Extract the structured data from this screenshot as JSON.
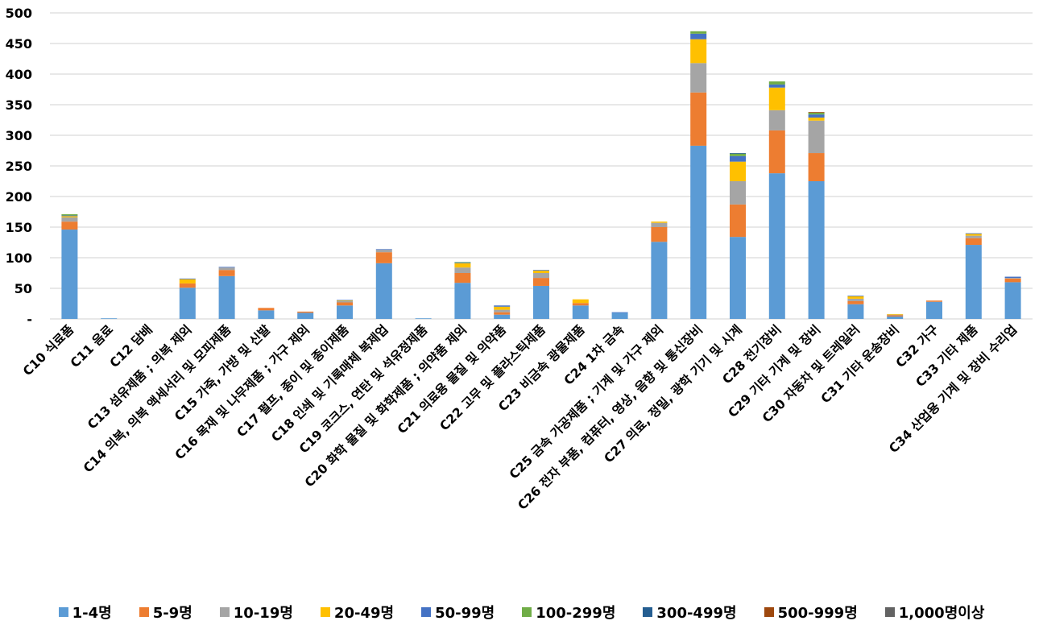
{
  "chart_data": {
    "type": "bar",
    "stacked": true,
    "title": "",
    "xlabel": "",
    "ylabel": "",
    "ylim": [
      0,
      500
    ],
    "yticks": [
      0,
      50,
      100,
      150,
      200,
      250,
      300,
      350,
      400,
      450,
      500
    ],
    "ytick_labels": [
      "-",
      "50",
      "100",
      "150",
      "200",
      "250",
      "300",
      "350",
      "400",
      "450",
      "500"
    ],
    "grid": true,
    "legend_position": "bottom",
    "categories": [
      "C10 식료품",
      "C11 음료",
      "C12 담배",
      "C13 섬유제품 ; 의복 제외",
      "C14 의복, 의복 액세서리 및 모피제품",
      "C15 가죽, 가방 및 신발",
      "C16 목재 및 나무제품 ; 가구 제외",
      "C17 펄프, 종이 및 종이제품",
      "C18 인쇄 및 기록매체 복제업",
      "C19 코크스, 연탄 및 석유정제품",
      "C20 화학 물질 및 화학제품 ; 의약품 제외",
      "C21 의료용 물질 및 의약품",
      "C22 고무 및 플라스틱제품",
      "C23 비금속 광물제품",
      "C24 1차 금속",
      "C25 금속 가공제품 ; 기계 및 가구 제외",
      "C26 전자 부품, 컴퓨터, 영상, 음향 및 통신장비",
      "C27 의료, 정밀, 광학 기기 및 시계",
      "C28 전기장비",
      "C29 기타 기계 및 장비",
      "C30 자동차 및 트레일러",
      "C31 기타 운송장비",
      "C32 가구",
      "C33 기타 제품",
      "C34 산업용 기계 및 장비 수리업"
    ],
    "series": [
      {
        "name": "1-4명",
        "color": "#5B9BD5",
        "values": [
          146,
          1,
          0,
          51,
          70,
          14,
          10,
          22,
          91,
          1,
          59,
          7,
          54,
          22,
          10,
          126,
          283,
          134,
          238,
          225,
          24,
          4,
          28,
          121,
          60
        ]
      },
      {
        "name": "5-9명",
        "color": "#ED7D31",
        "values": [
          13,
          0,
          0,
          7,
          10,
          4,
          2,
          5,
          18,
          0,
          16,
          4,
          13,
          4,
          0,
          24,
          87,
          53,
          70,
          46,
          5,
          2,
          2,
          11,
          6
        ]
      },
      {
        "name": "10-19명",
        "color": "#A5A5A5",
        "values": [
          7,
          0,
          0,
          0,
          4,
          0,
          0,
          2,
          4,
          0,
          9,
          4,
          8,
          0,
          0,
          7,
          48,
          38,
          33,
          53,
          4,
          1,
          0,
          4,
          1
        ]
      },
      {
        "name": "20-49명",
        "color": "#FFC000",
        "values": [
          2,
          0,
          0,
          7,
          0,
          0,
          0,
          1,
          0,
          0,
          7,
          5,
          4,
          6,
          0,
          2,
          39,
          32,
          37,
          5,
          4,
          1,
          0,
          3,
          0
        ]
      },
      {
        "name": "50-99명",
        "color": "#4472C4",
        "values": [
          1,
          0,
          0,
          1,
          1,
          0,
          0,
          1,
          1,
          0,
          1,
          2,
          1,
          0,
          1,
          0,
          9,
          9,
          5,
          5,
          1,
          0,
          0,
          1,
          2
        ]
      },
      {
        "name": "100-299명",
        "color": "#70AD47",
        "values": [
          2,
          0,
          0,
          0,
          0,
          0,
          0,
          0,
          0,
          0,
          1,
          0,
          0,
          0,
          0,
          0,
          4,
          4,
          5,
          3,
          0,
          0,
          0,
          0,
          0
        ]
      },
      {
        "name": "300-499명",
        "color": "#255E91",
        "values": [
          0,
          0,
          0,
          0,
          0,
          0,
          0,
          0,
          0,
          0,
          0,
          0,
          0,
          0,
          0,
          0,
          0,
          1,
          0,
          0,
          0,
          0,
          0,
          0,
          0
        ]
      },
      {
        "name": "500-999명",
        "color": "#9E480E",
        "values": [
          0,
          0,
          0,
          0,
          0,
          0,
          0,
          0,
          0,
          0,
          0,
          0,
          0,
          0,
          0,
          0,
          0,
          0,
          0,
          1,
          0,
          0,
          0,
          0,
          0
        ]
      },
      {
        "name": "1,000명이상",
        "color": "#636363",
        "values": [
          0,
          0,
          0,
          0,
          0,
          0,
          0,
          0,
          0,
          0,
          0,
          0,
          0,
          0,
          0,
          0,
          0,
          0,
          0,
          0,
          0,
          0,
          0,
          0,
          0
        ]
      }
    ]
  }
}
